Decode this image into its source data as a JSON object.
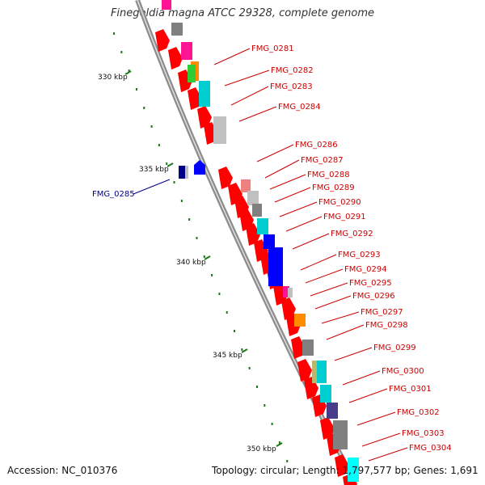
{
  "title": "Finegoldia magna ATCC 29328, complete genome",
  "accession": "Accession: NC_010376",
  "topology": "Topology: circular; Length: 1,797,577 bp; Genes: 1,691",
  "scale_labels": [
    "330 kbp",
    "335 kbp",
    "340 kbp",
    "345 kbp",
    "350 kbp"
  ],
  "colors": {
    "backbone": "#888888",
    "strand_forward": "#ff0000",
    "tick": "#1a7a1a",
    "label_forward": "#cc0000",
    "label_reverse": "#00008b"
  },
  "gene_labels": [
    "FMG_0281",
    "FMG_0282",
    "FMG_0283",
    "FMG_0284",
    "FMG_0286",
    "FMG_0287",
    "FMG_0288",
    "FMG_0289",
    "FMG_0290",
    "FMG_0291",
    "FMG_0292",
    "FMG_0293",
    "FMG_0294",
    "FMG_0295",
    "FMG_0296",
    "FMG_0297",
    "FMG_0298",
    "FMG_0299",
    "FMG_0300",
    "FMG_0301",
    "FMG_0302",
    "FMG_0303",
    "FMG_0304"
  ],
  "reverse_gene_label": "FMG_0285",
  "cog_colors": [
    "#ff1493",
    "#808080",
    "#00ced1",
    "#ff8c00",
    "#32cd32",
    "#c0c0c0",
    "#0000ff",
    "#483d8b",
    "#f08080",
    "#bdb76b",
    "#00ffff"
  ]
}
